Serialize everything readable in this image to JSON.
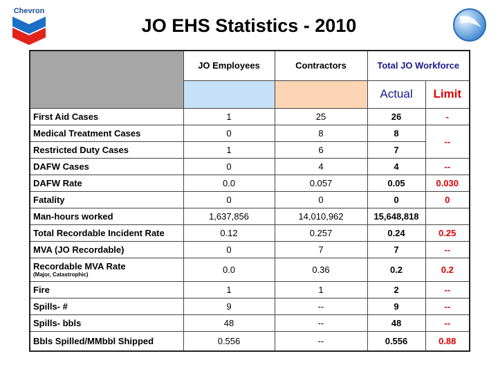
{
  "header": {
    "logo": "Chevron",
    "title": "JO EHS Statistics - 2010"
  },
  "table": {
    "columns": [
      "JO Employees",
      "Contractors",
      "Total JO Workforce"
    ],
    "subcolumns": [
      "Actual",
      "Limit"
    ],
    "rows": [
      {
        "label": "First Aid Cases",
        "jo": "1",
        "contractors": "25",
        "actual": "26",
        "limit": "-"
      },
      {
        "label": "Medical Treatment Cases",
        "jo": "0",
        "contractors": "8",
        "actual": "8",
        "limit": "--",
        "limit_rows": 2
      },
      {
        "label": "Restricted Duty Cases",
        "jo": "1",
        "contractors": "6",
        "actual": "7"
      },
      {
        "label": "DAFW Cases",
        "jo": "0",
        "contractors": "4",
        "actual": "4",
        "limit": "--"
      },
      {
        "label": "DAFW Rate",
        "jo": "0.0",
        "contractors": "0.057",
        "actual": "0.05",
        "limit": "0.030"
      },
      {
        "label": "Fatality",
        "jo": "0",
        "contractors": "0",
        "actual": "0",
        "limit": "0"
      },
      {
        "label": "Man-hours worked",
        "jo": "1,637,856",
        "contractors": "14,010,962",
        "actual": "15,648,818"
      },
      {
        "label": "Total Recordable Incident Rate",
        "jo": "0.12",
        "contractors": "0.257",
        "actual": "0.24",
        "limit": "0.25"
      },
      {
        "label": "MVA (JO Recordable)",
        "jo": "0",
        "contractors": "7",
        "actual": "7",
        "limit": "--"
      },
      {
        "label": "Recordable MVA Rate",
        "note": "(Major, Catastrophic)",
        "jo": "0.0",
        "contractors": "0.36",
        "actual": "0.2",
        "limit": "0.2"
      },
      {
        "label": "Fire",
        "jo": "1",
        "contractors": "1",
        "actual": "2",
        "limit": "--"
      },
      {
        "label": "Spills- #",
        "jo": "9",
        "contractors": "--",
        "actual": "9",
        "limit": "--"
      },
      {
        "label": "Spills- bbls",
        "jo": "48",
        "contractors": "--",
        "actual": "48",
        "limit": "--"
      },
      {
        "label": "Bbls Spilled/MMbbl Shipped",
        "jo": "0.556",
        "contractors": "--",
        "actual": "0.556",
        "limit": "0.88"
      }
    ]
  }
}
